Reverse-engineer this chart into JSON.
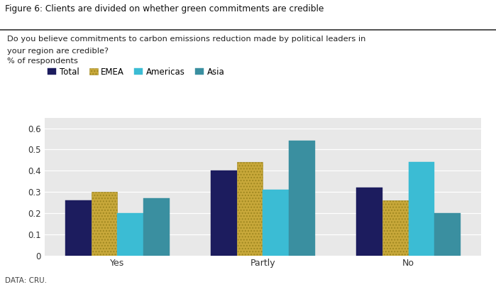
{
  "figure_title": "Figure 6: Clients are divided on whether green commitments are credible",
  "question_line1": "Do you believe commitments to carbon emissions reduction made by political leaders in",
  "question_line2": "your region are credible?",
  "question_line3": "% of respondents",
  "data_source": "DATA: CRU.",
  "categories": [
    "Yes",
    "Partly",
    "No"
  ],
  "series_names": [
    "Total",
    "EMEA",
    "Americas",
    "Asia"
  ],
  "series": {
    "Total": [
      0.26,
      0.4,
      0.32
    ],
    "EMEA": [
      0.3,
      0.44,
      0.26
    ],
    "Americas": [
      0.2,
      0.31,
      0.44
    ],
    "Asia": [
      0.27,
      0.54,
      0.2
    ]
  },
  "colors": {
    "Total": "#1c1c5e",
    "EMEA": "#c8a83a",
    "Americas": "#3bbcd4",
    "Asia": "#3a8fa0"
  },
  "ylim": [
    0,
    0.65
  ],
  "yticks": [
    0,
    0.1,
    0.2,
    0.3,
    0.4,
    0.5,
    0.6
  ],
  "plot_bg_color": "#e8e8e8",
  "fig_bg_color": "#ffffff",
  "title_bg_color": "#ffffff",
  "bar_width": 0.18
}
